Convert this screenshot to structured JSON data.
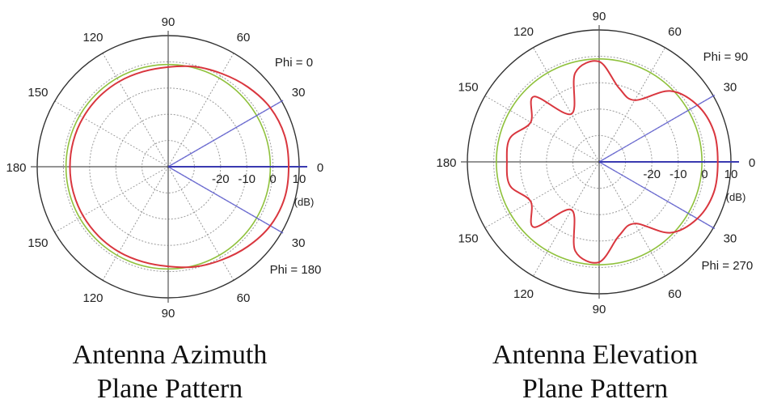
{
  "chart_data": [
    {
      "type": "polar",
      "caption": [
        "Antenna Azimuth",
        "Plane Pattern"
      ],
      "angle_labels": [
        "90",
        "60",
        "30",
        "0",
        "30",
        "60",
        "90",
        "120",
        "150",
        "180",
        "150",
        "120"
      ],
      "radial_ticks": [
        "-20",
        "-10",
        "0",
        "10"
      ],
      "radial_unit": "(dB)",
      "rlim_db": [
        -40,
        10
      ],
      "cut_labels": [
        "Phi = 0",
        "Phi = 180"
      ],
      "reference_circle_db": -1,
      "colors": {
        "pattern": "#d9363e",
        "reference": "#8fc13c",
        "cut_line": "#5b5bcf",
        "axis": "#555555",
        "grid": "#9a9a9a"
      },
      "series": [
        {
          "theta_deg": [
            0,
            15,
            30,
            45,
            60,
            75,
            90,
            105,
            120,
            135,
            150,
            165,
            180,
            195,
            210,
            225,
            240,
            255,
            270,
            285,
            300,
            315,
            330,
            345
          ],
          "r_db": [
            6,
            6,
            5,
            3,
            1,
            -0.5,
            -2,
            -2.5,
            -2.5,
            -2.5,
            -2.5,
            -2.5,
            -2.5,
            -2.5,
            -2.5,
            -2.5,
            -2.5,
            -2.5,
            -2,
            -0.5,
            1,
            3,
            5,
            6
          ]
        }
      ]
    },
    {
      "type": "polar",
      "caption": [
        "Antenna Elevation",
        "Plane Pattern"
      ],
      "angle_labels": [
        "90",
        "60",
        "30",
        "0",
        "30",
        "60",
        "90",
        "120",
        "150",
        "180",
        "150",
        "120"
      ],
      "radial_ticks": [
        "-20",
        "-10",
        "0",
        "10"
      ],
      "radial_unit": "(dB)",
      "rlim_db": [
        -40,
        10
      ],
      "cut_labels": [
        "Phi = 90",
        "Phi = 270"
      ],
      "reference_circle_db": -1,
      "colors": {
        "pattern": "#d9363e",
        "reference": "#8fc13c",
        "cut_line": "#5b5bcf",
        "axis": "#555555",
        "grid": "#9a9a9a"
      },
      "series": [
        {
          "theta_deg": [
            0,
            15,
            30,
            45,
            60,
            75,
            90,
            105,
            120,
            135,
            150,
            165,
            180,
            195,
            210,
            225,
            240,
            255,
            270,
            285,
            300,
            315,
            330,
            345
          ],
          "r_db": [
            5,
            5,
            3,
            -2,
            -13,
            -11,
            -2,
            -5,
            -19,
            -5,
            -10,
            -5,
            -5,
            -5,
            -10,
            -5,
            -19,
            -5,
            -2,
            -11,
            -13,
            -2,
            3,
            5
          ]
        }
      ]
    }
  ]
}
